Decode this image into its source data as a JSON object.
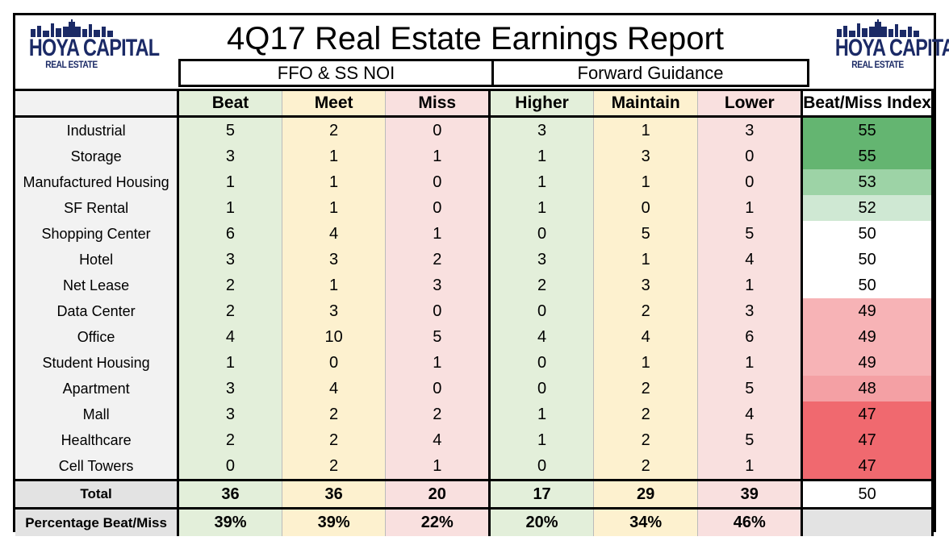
{
  "chart_data": {
    "type": "table",
    "title": "4Q17 Real Estate Earnings Report",
    "logo": {
      "name": "HOYA CAPITAL",
      "sub": "REAL ESTATE"
    },
    "groups": [
      "FFO & SS NOI",
      "Forward Guidance"
    ],
    "columns": [
      "Beat",
      "Meet",
      "Miss",
      "Higher",
      "Maintain",
      "Lower",
      "Beat/Miss Index"
    ],
    "rows": [
      {
        "sector": "Industrial",
        "values": [
          5,
          2,
          0,
          3,
          1,
          3,
          55
        ]
      },
      {
        "sector": "Storage",
        "values": [
          3,
          1,
          1,
          1,
          3,
          0,
          55
        ]
      },
      {
        "sector": "Manufactured Housing",
        "values": [
          1,
          1,
          0,
          1,
          1,
          0,
          53
        ]
      },
      {
        "sector": "SF Rental",
        "values": [
          1,
          1,
          0,
          1,
          0,
          1,
          52
        ]
      },
      {
        "sector": "Shopping Center",
        "values": [
          6,
          4,
          1,
          0,
          5,
          5,
          50
        ]
      },
      {
        "sector": "Hotel",
        "values": [
          3,
          3,
          2,
          3,
          1,
          4,
          50
        ]
      },
      {
        "sector": "Net Lease",
        "values": [
          2,
          1,
          3,
          2,
          3,
          1,
          50
        ]
      },
      {
        "sector": "Data Center",
        "values": [
          2,
          3,
          0,
          0,
          2,
          3,
          49
        ]
      },
      {
        "sector": "Office",
        "values": [
          4,
          10,
          5,
          4,
          4,
          6,
          49
        ]
      },
      {
        "sector": "Student Housing",
        "values": [
          1,
          0,
          1,
          0,
          1,
          1,
          49
        ]
      },
      {
        "sector": "Apartment",
        "values": [
          3,
          4,
          0,
          0,
          2,
          5,
          48
        ]
      },
      {
        "sector": "Mall",
        "values": [
          3,
          2,
          2,
          1,
          2,
          4,
          47
        ]
      },
      {
        "sector": "Healthcare",
        "values": [
          2,
          2,
          4,
          1,
          2,
          5,
          47
        ]
      },
      {
        "sector": "Cell Towers",
        "values": [
          0,
          2,
          1,
          0,
          2,
          1,
          47
        ]
      }
    ],
    "total": {
      "label": "Total",
      "values": [
        36,
        36,
        20,
        17,
        29,
        39,
        50
      ]
    },
    "percentage": {
      "label": "Percentage Beat/Miss",
      "values": [
        "39%",
        "39%",
        "22%",
        "20%",
        "34%",
        "46%",
        ""
      ]
    },
    "index_colors": [
      "#64b571",
      "#64b571",
      "#9dd3a6",
      "#cfe8d3",
      "#ffffff",
      "#ffffff",
      "#ffffff",
      "#f7b3b6",
      "#f7b3b6",
      "#f7b3b6",
      "#f4a0a4",
      "#f0696f",
      "#f0696f",
      "#f0696f"
    ],
    "column_colors": {
      "beat": "#e3efda",
      "meet": "#fdf1cf",
      "miss": "#f9e0df"
    }
  }
}
